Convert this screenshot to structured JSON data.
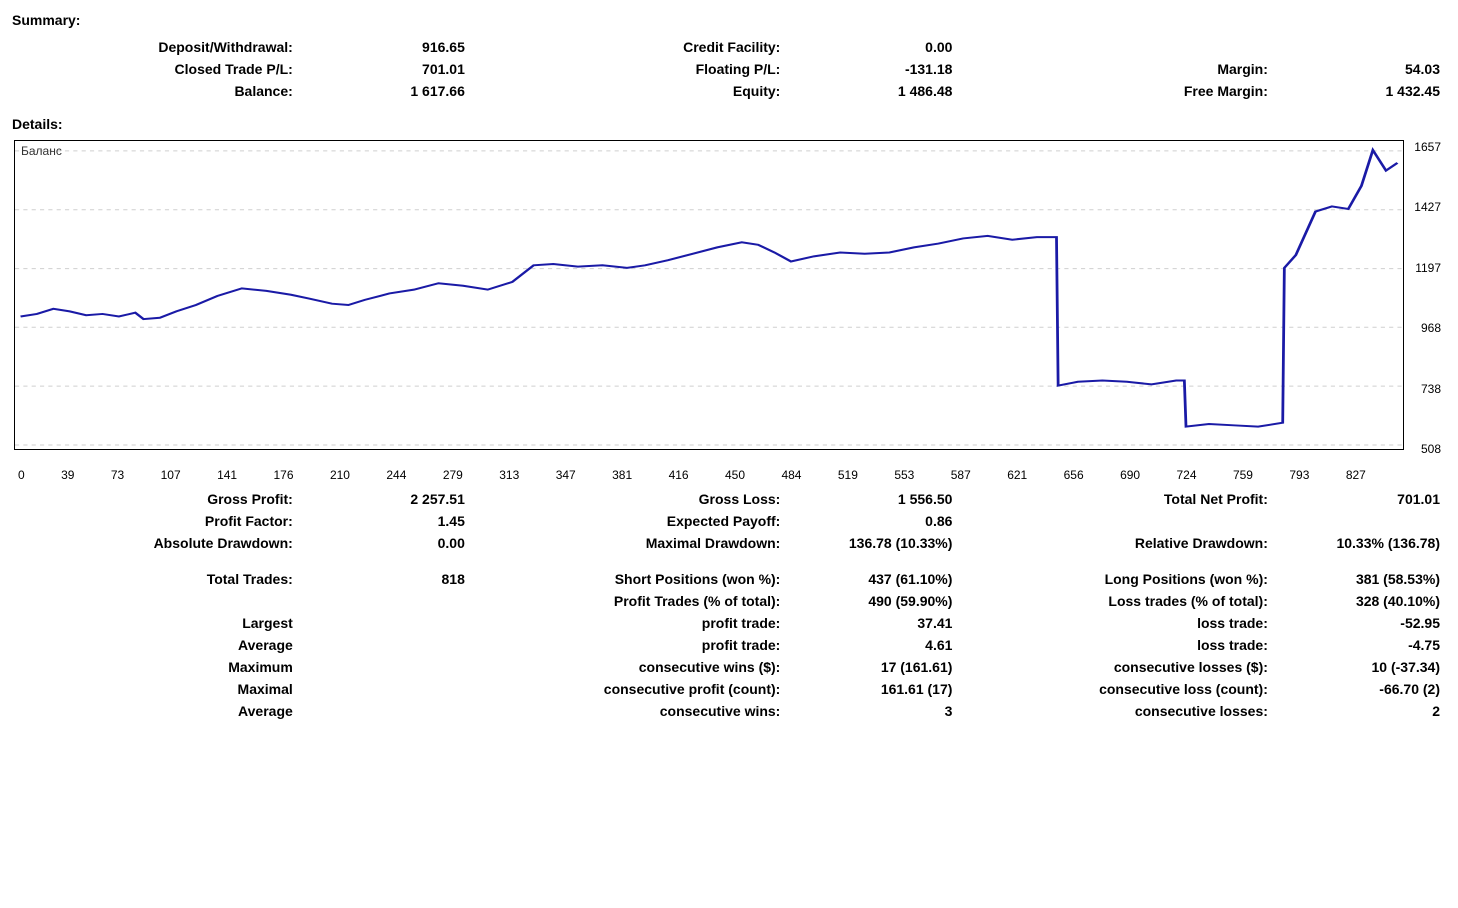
{
  "labels": {
    "summary": "Summary:",
    "details": "Details:"
  },
  "summary": {
    "r1c1l": "Deposit/Withdrawal:",
    "r1c1v": "916.65",
    "r1c2l": "Credit Facility:",
    "r1c2v": "0.00",
    "r1c3l": "",
    "r1c3v": "",
    "r2c1l": "Closed Trade P/L:",
    "r2c1v": "701.01",
    "r2c2l": "Floating P/L:",
    "r2c2v": "-131.18",
    "r2c3l": "Margin:",
    "r2c3v": "54.03",
    "r3c1l": "Balance:",
    "r3c1v": "1 617.66",
    "r3c2l": "Equity:",
    "r3c2v": "1 486.48",
    "r3c3l": "Free Margin:",
    "r3c3v": "1 432.45"
  },
  "chart": {
    "type": "line",
    "legend": "Баланс",
    "line_color": "#1a1aa6",
    "line_width": 2,
    "background_color": "#ffffff",
    "grid_color": "#cfcfcf",
    "grid_dash": "3,3",
    "border_color": "#000000",
    "xlim": [
      0,
      840
    ],
    "ylim": [
      508,
      1680
    ],
    "yticks": [
      508,
      738,
      968,
      1197,
      1427,
      1657
    ],
    "xticks": [
      0,
      39,
      73,
      107,
      141,
      176,
      210,
      244,
      279,
      313,
      347,
      381,
      416,
      450,
      484,
      519,
      553,
      587,
      621,
      656,
      690,
      724,
      759,
      793,
      827
    ],
    "values": [
      [
        0,
        1010
      ],
      [
        10,
        1020
      ],
      [
        20,
        1040
      ],
      [
        30,
        1030
      ],
      [
        40,
        1015
      ],
      [
        50,
        1020
      ],
      [
        60,
        1010
      ],
      [
        70,
        1025
      ],
      [
        75,
        1000
      ],
      [
        85,
        1005
      ],
      [
        95,
        1030
      ],
      [
        107,
        1055
      ],
      [
        120,
        1090
      ],
      [
        135,
        1120
      ],
      [
        150,
        1110
      ],
      [
        165,
        1095
      ],
      [
        176,
        1080
      ],
      [
        190,
        1060
      ],
      [
        200,
        1055
      ],
      [
        210,
        1075
      ],
      [
        225,
        1100
      ],
      [
        240,
        1115
      ],
      [
        255,
        1140
      ],
      [
        270,
        1130
      ],
      [
        285,
        1115
      ],
      [
        300,
        1145
      ],
      [
        313,
        1210
      ],
      [
        325,
        1215
      ],
      [
        340,
        1205
      ],
      [
        355,
        1210
      ],
      [
        370,
        1200
      ],
      [
        381,
        1210
      ],
      [
        395,
        1230
      ],
      [
        410,
        1255
      ],
      [
        425,
        1280
      ],
      [
        440,
        1300
      ],
      [
        450,
        1290
      ],
      [
        460,
        1260
      ],
      [
        470,
        1225
      ],
      [
        484,
        1245
      ],
      [
        500,
        1260
      ],
      [
        515,
        1255
      ],
      [
        530,
        1260
      ],
      [
        545,
        1280
      ],
      [
        560,
        1295
      ],
      [
        575,
        1315
      ],
      [
        590,
        1325
      ],
      [
        605,
        1310
      ],
      [
        620,
        1320
      ],
      [
        632,
        1320
      ],
      [
        633,
        740
      ],
      [
        645,
        755
      ],
      [
        660,
        760
      ],
      [
        675,
        755
      ],
      [
        690,
        745
      ],
      [
        705,
        760
      ],
      [
        710,
        760
      ],
      [
        711,
        580
      ],
      [
        725,
        590
      ],
      [
        740,
        585
      ],
      [
        755,
        580
      ],
      [
        770,
        595
      ],
      [
        771,
        1200
      ],
      [
        778,
        1250
      ],
      [
        790,
        1420
      ],
      [
        800,
        1440
      ],
      [
        810,
        1430
      ],
      [
        818,
        1520
      ],
      [
        825,
        1660
      ],
      [
        833,
        1580
      ],
      [
        840,
        1610
      ]
    ]
  },
  "stats": {
    "r1c1l": "Gross Profit:",
    "r1c1v": "2 257.51",
    "r1c2l": "Gross Loss:",
    "r1c2v": "1 556.50",
    "r1c3l": "Total Net Profit:",
    "r1c3v": "701.01",
    "r2c1l": "Profit Factor:",
    "r2c1v": "1.45",
    "r2c2l": "Expected Payoff:",
    "r2c2v": "0.86",
    "r2c3l": "",
    "r2c3v": "",
    "r3c1l": "Absolute Drawdown:",
    "r3c1v": "0.00",
    "r3c2l": "Maximal Drawdown:",
    "r3c2v": "136.78 (10.33%)",
    "r3c3l": "Relative Drawdown:",
    "r3c3v": "10.33% (136.78)",
    "r5c1l": "Total Trades:",
    "r5c1v": "818",
    "r5c2l": "Short Positions (won %):",
    "r5c2v": "437 (61.10%)",
    "r5c3l": "Long Positions (won %):",
    "r5c3v": "381 (58.53%)",
    "r6c1l": "",
    "r6c1v": "",
    "r6c2l": "Profit Trades (% of total):",
    "r6c2v": "490 (59.90%)",
    "r6c3l": "Loss trades (% of total):",
    "r6c3v": "328 (40.10%)",
    "r7c1l": "Largest",
    "r7c1v": "",
    "r7c2l": "profit trade:",
    "r7c2v": "37.41",
    "r7c3l": "loss trade:",
    "r7c3v": "-52.95",
    "r8c1l": "Average",
    "r8c1v": "",
    "r8c2l": "profit trade:",
    "r8c2v": "4.61",
    "r8c3l": "loss trade:",
    "r8c3v": "-4.75",
    "r9c1l": "Maximum",
    "r9c1v": "",
    "r9c2l": "consecutive wins ($):",
    "r9c2v": "17 (161.61)",
    "r9c3l": "consecutive losses ($):",
    "r9c3v": "10 (-37.34)",
    "r10c1l": "Maximal",
    "r10c1v": "",
    "r10c2l": "consecutive profit (count):",
    "r10c2v": "161.61 (17)",
    "r10c3l": "consecutive loss (count):",
    "r10c3v": "-66.70 (2)",
    "r11c1l": "Average",
    "r11c1v": "",
    "r11c2l": "consecutive wins:",
    "r11c2v": "3",
    "r11c3l": "consecutive losses:",
    "r11c3v": "2"
  }
}
